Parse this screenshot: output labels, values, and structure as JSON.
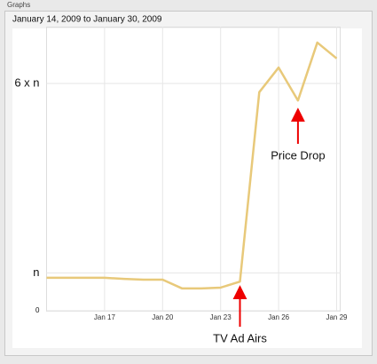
{
  "panel_label": "Graphs",
  "date_range": "January 14, 2009 to January 30, 2009",
  "chart_data": {
    "type": "line",
    "categories": [
      null,
      null,
      null,
      "Jan 17",
      null,
      null,
      "Jan 20",
      null,
      null,
      "Jan 23",
      null,
      null,
      "Jan 26",
      null,
      null,
      "Jan 29"
    ],
    "values": [
      0.87,
      0.87,
      0.87,
      0.87,
      0.84,
      0.82,
      0.82,
      0.59,
      0.59,
      0.61,
      0.77,
      5.77,
      6.42,
      5.55,
      7.08,
      6.66
    ],
    "color": "#e8c97a",
    "ylim": [
      0,
      7.5
    ],
    "yticks": [
      0,
      {
        "value": 1,
        "label": "n"
      },
      {
        "value": 6,
        "label": "6 x n"
      }
    ],
    "grid": true,
    "annotations": [
      {
        "text": "TV Ad Airs",
        "category": 10
      },
      {
        "text": "Price Drop",
        "category": 13
      }
    ]
  }
}
